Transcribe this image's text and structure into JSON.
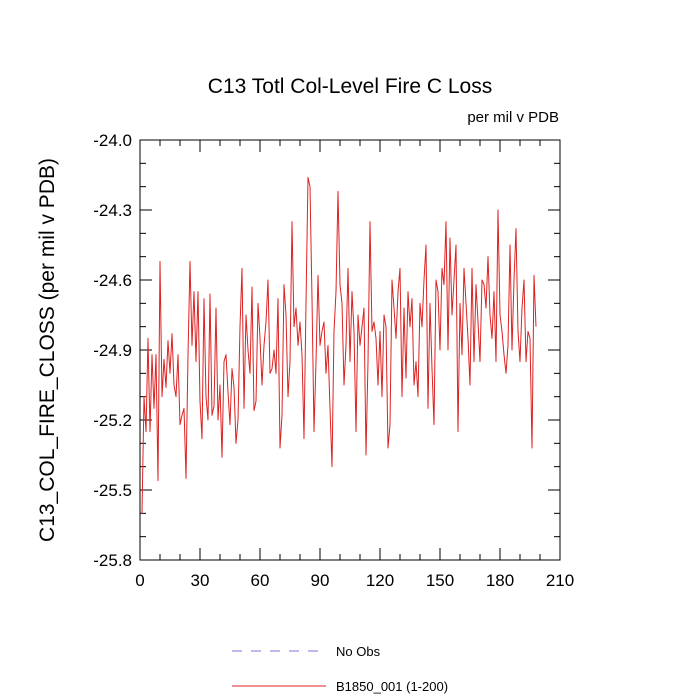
{
  "chart_data": {
    "type": "line",
    "title": "C13 Totl Col-Level Fire C Loss",
    "subtitle": "per mil v PDB",
    "xlabel": "",
    "ylabel": "C13_COL_FIRE_CLOSS  (per mil v PDB)",
    "xlim": [
      0,
      210
    ],
    "ylim": [
      -25.8,
      -24.0
    ],
    "xticks": [
      0,
      30,
      60,
      90,
      120,
      150,
      180,
      210
    ],
    "yticks": [
      -25.8,
      -25.5,
      -25.2,
      -24.9,
      -24.6,
      -24.3,
      -24.0
    ],
    "ytick_labels": [
      "-25.8",
      "-25.5",
      "-25.2",
      "-24.9",
      "-24.6",
      "-24.3",
      "-24.0"
    ],
    "legend": {
      "position": "bottom",
      "entries": [
        {
          "label": "No Obs",
          "color": "#7777dd",
          "style": "dashed"
        },
        {
          "label": "B1850_001 (1-200)",
          "color": "#dd2222",
          "style": "solid"
        }
      ]
    },
    "series": [
      {
        "name": "B1850_001 (1-200)",
        "color": "#dd2222",
        "x_start": 1,
        "values": [
          -25.6,
          -25.1,
          -25.25,
          -24.85,
          -25.25,
          -24.92,
          -25.15,
          -24.92,
          -25.46,
          -24.52,
          -25.1,
          -24.94,
          -25.06,
          -24.86,
          -25.0,
          -24.83,
          -25.05,
          -25.1,
          -24.92,
          -25.22,
          -25.18,
          -25.15,
          -25.45,
          -24.92,
          -24.52,
          -24.88,
          -24.65,
          -24.95,
          -24.65,
          -25.12,
          -25.28,
          -24.68,
          -25.1,
          -25.2,
          -24.66,
          -25.18,
          -25.14,
          -24.72,
          -25.2,
          -25.05,
          -25.36,
          -24.95,
          -24.92,
          -25.08,
          -25.22,
          -24.98,
          -25.06,
          -25.3,
          -25.2,
          -24.8,
          -24.55,
          -25.15,
          -24.75,
          -24.9,
          -25.0,
          -24.63,
          -25.16,
          -25.12,
          -24.7,
          -24.85,
          -25.05,
          -24.88,
          -24.78,
          -24.6,
          -25.0,
          -24.98,
          -24.9,
          -25.0,
          -24.68,
          -25.32,
          -25.18,
          -24.62,
          -24.75,
          -25.1,
          -24.95,
          -24.35,
          -24.8,
          -24.72,
          -24.88,
          -24.78,
          -24.92,
          -25.28,
          -24.7,
          -24.16,
          -24.2,
          -24.68,
          -25.25,
          -24.95,
          -24.58,
          -24.88,
          -24.82,
          -24.78,
          -25.0,
          -24.88,
          -25.15,
          -25.4,
          -24.82,
          -24.65,
          -24.22,
          -24.62,
          -24.7,
          -25.05,
          -24.88,
          -24.55,
          -24.95,
          -24.65,
          -24.82,
          -25.25,
          -24.75,
          -24.88,
          -24.8,
          -24.72,
          -25.35,
          -24.95,
          -24.35,
          -24.82,
          -24.78,
          -24.85,
          -25.05,
          -24.82,
          -25.1,
          -24.75,
          -24.8,
          -25.32,
          -25.22,
          -24.6,
          -24.72,
          -24.85,
          -24.65,
          -24.55,
          -25.1,
          -24.72,
          -25.02,
          -24.65,
          -24.8,
          -24.68,
          -25.05,
          -24.95,
          -25.1,
          -24.7,
          -24.8,
          -24.6,
          -24.45,
          -25.15,
          -24.7,
          -24.98,
          -25.22,
          -24.6,
          -24.65,
          -24.9,
          -24.55,
          -24.62,
          -24.35,
          -24.9,
          -24.42,
          -24.75,
          -24.6,
          -24.45,
          -25.25,
          -24.7,
          -24.92,
          -24.55,
          -24.7,
          -24.85,
          -25.05,
          -24.55,
          -24.95,
          -24.62,
          -24.78,
          -24.95,
          -24.6,
          -24.62,
          -24.72,
          -24.5,
          -24.75,
          -24.85,
          -24.65,
          -24.95,
          -24.3,
          -24.75,
          -24.82,
          -24.92,
          -25.0,
          -24.88,
          -24.45,
          -24.9,
          -24.6,
          -24.38,
          -24.82,
          -24.95,
          -24.72,
          -24.6,
          -24.95,
          -24.82,
          -24.85,
          -25.32,
          -24.58,
          -24.8
        ]
      }
    ]
  }
}
